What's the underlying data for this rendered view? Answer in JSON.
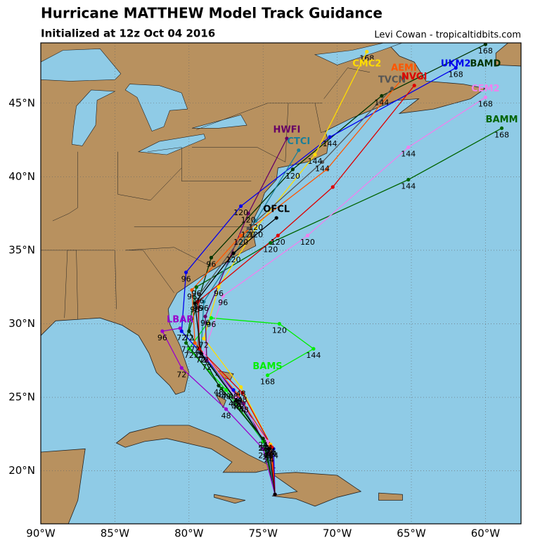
{
  "map": {
    "title": "Hurricane MATTHEW Model Track Guidance",
    "subtitle": "Initialized at 12z Oct 04 2016",
    "credit": "Levi Cowan - tropicaltidbits.com",
    "lon_range": [
      -90,
      -57.6
    ],
    "lat_range": [
      16.4,
      49.1
    ],
    "lon_ticks": [
      {
        "value": -90,
        "label": "90°W"
      },
      {
        "value": -85,
        "label": "85°W"
      },
      {
        "value": -80,
        "label": "80°W"
      },
      {
        "value": -75,
        "label": "75°W"
      },
      {
        "value": -70,
        "label": "70°W"
      },
      {
        "value": -65,
        "label": "65°W"
      },
      {
        "value": -60,
        "label": "60°W"
      }
    ],
    "lat_ticks": [
      {
        "value": 20,
        "label": "20°N"
      },
      {
        "value": 25,
        "label": "25°N"
      },
      {
        "value": 30,
        "label": "30°N"
      },
      {
        "value": 35,
        "label": "35°N"
      },
      {
        "value": 40,
        "label": "40°N"
      },
      {
        "value": 45,
        "label": "45°N"
      }
    ],
    "grid": true,
    "tracks": [
      {
        "name": "BAMS",
        "color": "#00ee00",
        "points": [
          [
            -74.2,
            18.4
          ],
          [
            -75,
            22
          ],
          [
            -77.5,
            25.5
          ],
          [
            -80,
            28.3
          ],
          [
            -78.5,
            30.4
          ],
          [
            -73.9,
            30
          ],
          [
            -71.6,
            28.3
          ],
          [
            -74.7,
            26.5
          ]
        ],
        "hours": [
          null,
          24,
          48,
          72,
          96,
          120,
          144,
          168
        ]
      },
      {
        "name": "BAMM",
        "color": "#006400",
        "points": [
          [
            -74.2,
            18.4
          ],
          [
            -74.9,
            22
          ],
          [
            -77.8,
            25.6
          ],
          [
            -80.2,
            28.7
          ],
          [
            -79.5,
            32.5
          ],
          [
            -74.5,
            35.5
          ],
          [
            -65.2,
            39.8
          ],
          [
            -58.9,
            43.3
          ]
        ],
        "hours": [
          null,
          24,
          48,
          72,
          96,
          120,
          144,
          168
        ]
      },
      {
        "name": "BAMD",
        "color": "#003300",
        "points": [
          [
            -74.2,
            18.4
          ],
          [
            -75,
            22.2
          ],
          [
            -78,
            25.8
          ],
          [
            -80,
            29.5
          ],
          [
            -78.5,
            34.5
          ],
          [
            -73,
            40.5
          ],
          [
            -67,
            45.5
          ],
          [
            -60,
            49
          ]
        ],
        "hours": [
          null,
          24,
          48,
          72,
          96,
          120,
          144,
          168
        ]
      },
      {
        "name": "UKM2",
        "color": "#0000ee",
        "points": [
          [
            -74.2,
            18.4
          ],
          [
            -74.3,
            21.5
          ],
          [
            -77,
            25.5
          ],
          [
            -80.5,
            29.5
          ],
          [
            -80.2,
            33.5
          ],
          [
            -76.5,
            38
          ],
          [
            -70.5,
            42.7
          ],
          [
            -62,
            47.4
          ]
        ],
        "hours": [
          null,
          24,
          48,
          72,
          96,
          120,
          144,
          168
        ]
      },
      {
        "name": "CMC2",
        "color": "#ffdd00",
        "points": [
          [
            -74.2,
            18.4
          ],
          [
            -74.5,
            21.8
          ],
          [
            -76.5,
            25.7
          ],
          [
            -79,
            29
          ],
          [
            -78,
            32.5
          ],
          [
            -75.5,
            36.5
          ],
          [
            -71.5,
            41.5
          ],
          [
            -68,
            48.5
          ]
        ],
        "hours": [
          null,
          24,
          48,
          72,
          96,
          120,
          144,
          168
        ]
      },
      {
        "name": "HWFI",
        "color": "#660066",
        "points": [
          [
            -74.2,
            18.4
          ],
          [
            -74.6,
            21.2
          ],
          [
            -76.3,
            24.6
          ],
          [
            -78.8,
            27.5
          ],
          [
            -78.9,
            30.5
          ],
          [
            -76,
            37.5
          ],
          [
            -73.4,
            42.6
          ]
        ],
        "hours": [
          null,
          24,
          48,
          72,
          96,
          120,
          null
        ]
      },
      {
        "name": "CTCI",
        "color": "#1a7f9a",
        "points": [
          [
            -74.2,
            18.4
          ],
          [
            -74.7,
            21.4
          ],
          [
            -76.6,
            24.8
          ],
          [
            -79.2,
            28
          ],
          [
            -79,
            31.5
          ],
          [
            -75.5,
            37
          ],
          [
            -72.6,
            41.8
          ]
        ],
        "hours": [
          null,
          24,
          48,
          72,
          96,
          120,
          null
        ]
      },
      {
        "name": "TVCN",
        "color": "#555555",
        "points": [
          [
            -74.2,
            18.4
          ],
          [
            -74.6,
            21.6
          ],
          [
            -77,
            25
          ],
          [
            -79.4,
            28.3
          ],
          [
            -79.3,
            32
          ],
          [
            -76,
            36.5
          ],
          [
            -71,
            41
          ],
          [
            -66.3,
            46
          ]
        ],
        "hours": [
          null,
          24,
          48,
          72,
          96,
          120,
          144,
          null
        ]
      },
      {
        "name": "AEMI",
        "color": "#ff5500",
        "points": [
          [
            -74.2,
            18.4
          ],
          [
            -74.5,
            21.7
          ],
          [
            -76.7,
            25.2
          ],
          [
            -79.6,
            28.7
          ],
          [
            -79.8,
            32.3
          ],
          [
            -76.5,
            36
          ],
          [
            -70.7,
            40.5
          ],
          [
            -65.5,
            46.8
          ]
        ],
        "hours": [
          null,
          24,
          48,
          72,
          96,
          120,
          null,
          null
        ]
      },
      {
        "name": "NVGI",
        "color": "#dd0000",
        "points": [
          [
            -74.2,
            18.4
          ],
          [
            -74.4,
            21.6
          ],
          [
            -76.4,
            25.3
          ],
          [
            -79.3,
            28.3
          ],
          [
            -79.4,
            31.5
          ],
          [
            -74,
            36
          ],
          [
            -70.3,
            39.3
          ],
          [
            -64.8,
            46.2
          ]
        ],
        "hours": [
          null,
          24,
          48,
          72,
          96,
          120,
          null,
          null
        ]
      },
      {
        "name": "CEM2",
        "color": "#ee82ee",
        "points": [
          [
            -74.2,
            18.4
          ],
          [
            -74.7,
            22
          ],
          [
            -76.8,
            25
          ],
          [
            -79,
            28
          ],
          [
            -77.7,
            31.9
          ],
          [
            -72,
            36
          ],
          [
            -65.2,
            42
          ],
          [
            -60,
            45.4
          ]
        ],
        "hours": [
          null,
          24,
          48,
          72,
          96,
          120,
          144,
          168
        ]
      },
      {
        "name": "LBAR",
        "color": "#9900cc",
        "points": [
          [
            -74.2,
            18.4
          ],
          [
            -75,
            21.5
          ],
          [
            -77.5,
            24.2
          ],
          [
            -80.5,
            27
          ],
          [
            -81.8,
            29.5
          ],
          [
            -80.6,
            29.7
          ]
        ],
        "hours": [
          null,
          24,
          48,
          72,
          96,
          null
        ]
      },
      {
        "name": "OFCL",
        "color": "#000000",
        "points": [
          [
            -74.2,
            18.4
          ],
          [
            -74.6,
            21.5
          ],
          [
            -76.8,
            24.8
          ],
          [
            -79.2,
            28
          ],
          [
            -79.6,
            31.4
          ],
          [
            -77,
            34.8
          ],
          [
            -74.1,
            37.2
          ]
        ],
        "hours": [
          null,
          24,
          48,
          72,
          96,
          120,
          null
        ]
      }
    ]
  }
}
